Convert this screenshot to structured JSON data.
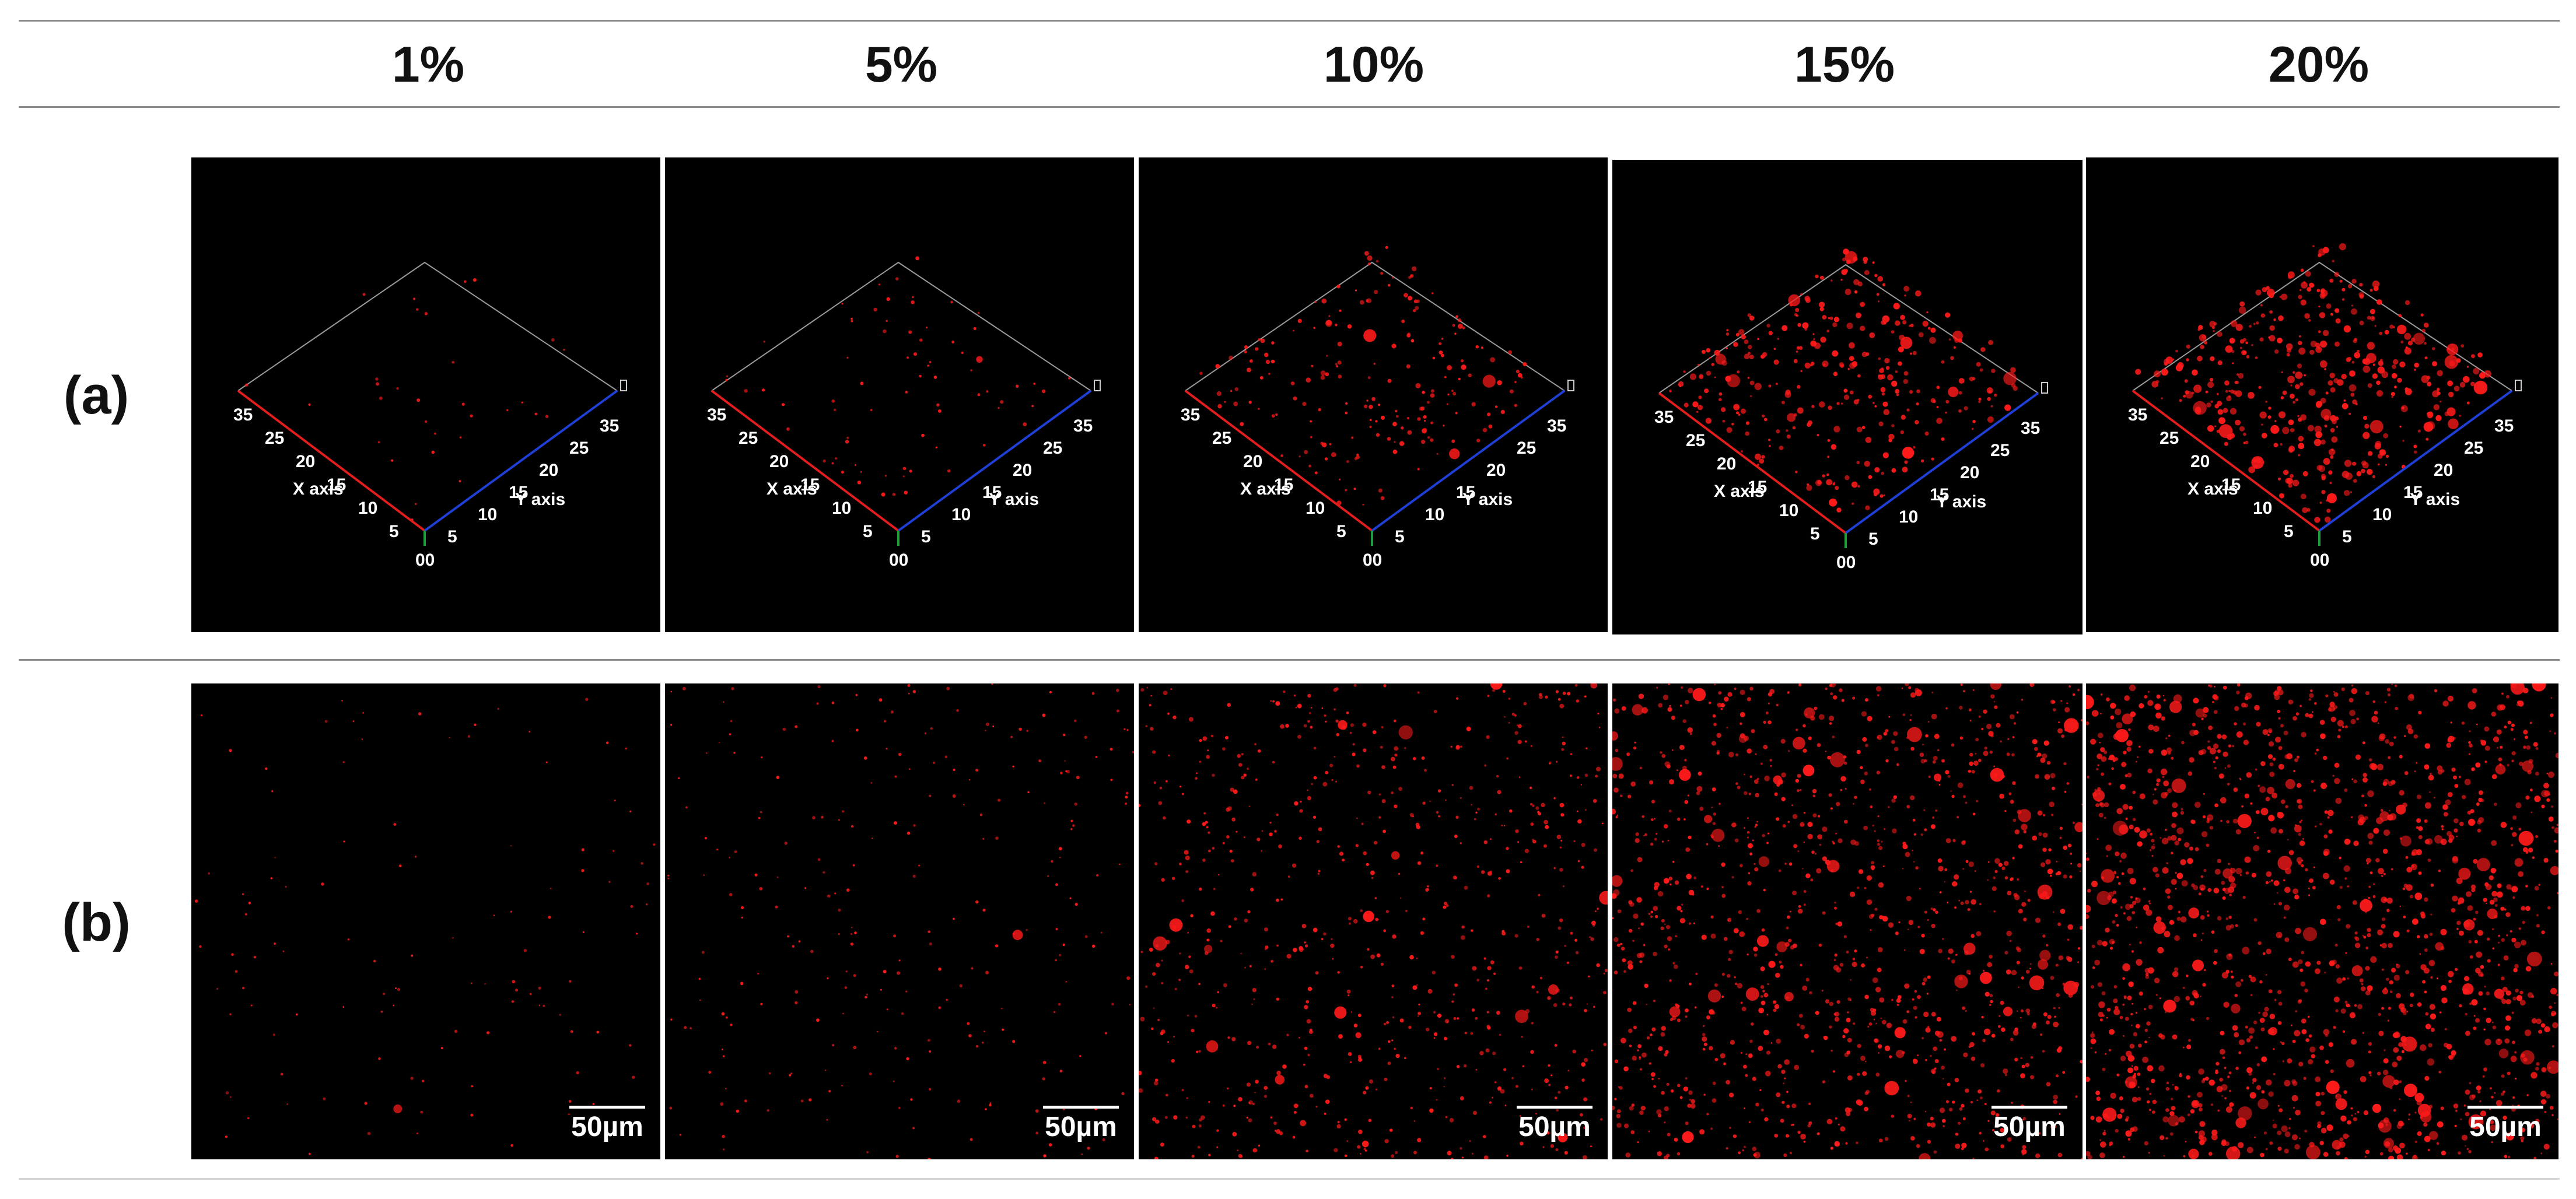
{
  "columns": [
    {
      "label": "1%",
      "density": 0.05
    },
    {
      "label": "5%",
      "density": 0.15
    },
    {
      "label": "10%",
      "density": 0.45
    },
    {
      "label": "15%",
      "density": 0.75
    },
    {
      "label": "20%",
      "density": 1.0
    }
  ],
  "rows": {
    "a": {
      "label": "(a)"
    },
    "b": {
      "label": "(b)"
    }
  },
  "axes": {
    "x_label": "X axis",
    "y_label": "Y axis",
    "ticks": [
      "35",
      "25",
      "20",
      "15",
      "10",
      "5"
    ],
    "origin_label": "00",
    "x_axis_color": "#e11d1d",
    "y_axis_color": "#1f3fd6",
    "z_axis_color": "#1f9d3a",
    "box_color": "#9a9a9a"
  },
  "scalebar": {
    "label": "50µm"
  },
  "colors": {
    "particle": "#ff1a1a",
    "background": "#000000"
  }
}
